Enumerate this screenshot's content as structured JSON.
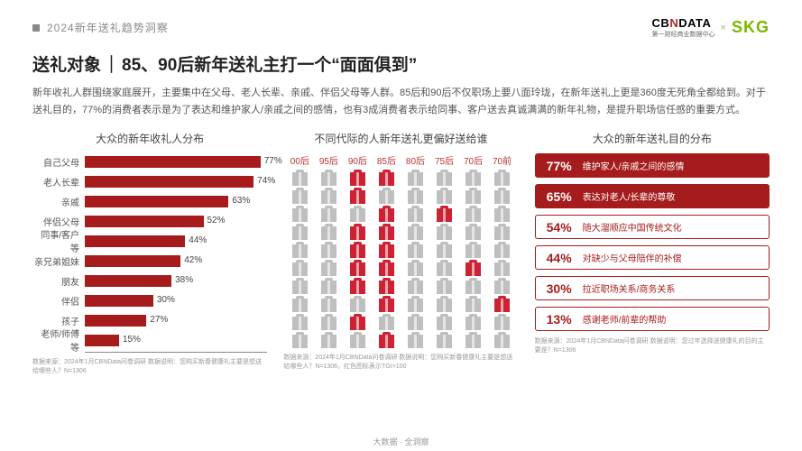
{
  "header": {
    "tag": "2024新年送礼趋势洞察",
    "brand_cbn_1": "CB",
    "brand_cbn_red": "N",
    "brand_cbn_2": "DATA",
    "brand_cbn_sub": "第一财经商业数据中心",
    "brand_x": "×",
    "brand_skg": "SKG"
  },
  "headline": {
    "left": "送礼对象",
    "sep": "｜",
    "right": "85、90后新年送礼主打一个“面面俱到”"
  },
  "body": "新年收礼人群围绕家庭展开，主要集中在父母、老人长辈、亲戚、伴侣父母等人群。85后和90后不仅职场上要八面玲珑，在新年送礼上更是360度无死角全都给到。对于送礼目的，77%的消费者表示是为了表达和维护家人/亲戚之间的感情，也有3成消费者表示给同事、客户送去真诚满满的新年礼物，是提升职场信任感的重要方式。",
  "left_chart": {
    "title": "大众的新年收礼人分布",
    "max": 80,
    "bar_color": "#a61c1c",
    "rows": [
      {
        "label": "自己父母",
        "pct": 77
      },
      {
        "label": "老人长辈",
        "pct": 74
      },
      {
        "label": "亲戚",
        "pct": 63
      },
      {
        "label": "伴侣父母",
        "pct": 52
      },
      {
        "label": "同事/客户等",
        "pct": 44
      },
      {
        "label": "亲兄弟姐妹",
        "pct": 42
      },
      {
        "label": "朋友",
        "pct": 38
      },
      {
        "label": "伴侣",
        "pct": 30
      },
      {
        "label": "孩子",
        "pct": 27
      },
      {
        "label": "老师/师傅等",
        "pct": 15
      }
    ],
    "source": "数据来源：2024年1月CBNData问卷调研 数据说明：您购买新春健康礼主要是想送给哪些人？N=1306"
  },
  "mid_chart": {
    "title": "不同代际的人新年送礼更偏好送给谁",
    "heads": [
      "00后",
      "95后",
      "90后",
      "85后",
      "80后",
      "75后",
      "70后",
      "70前"
    ],
    "cols": [
      [
        0,
        0,
        0,
        0,
        0,
        0,
        0,
        0,
        0,
        0
      ],
      [
        0,
        0,
        0,
        0,
        0,
        0,
        0,
        0,
        0,
        0
      ],
      [
        1,
        1,
        0,
        1,
        1,
        1,
        1,
        0,
        1,
        0
      ],
      [
        1,
        0,
        1,
        1,
        1,
        1,
        1,
        1,
        0,
        1
      ],
      [
        0,
        0,
        0,
        0,
        0,
        0,
        0,
        0,
        0,
        0
      ],
      [
        0,
        0,
        1,
        0,
        0,
        0,
        0,
        0,
        0,
        0
      ],
      [
        0,
        0,
        0,
        0,
        0,
        1,
        0,
        0,
        0,
        0
      ],
      [
        0,
        0,
        0,
        0,
        0,
        0,
        0,
        1,
        0,
        0
      ]
    ],
    "source": "数据来源：2024年1月CBNData问卷调研 数据说明：您购买新春健康礼主要是想送给哪些人？N=1306，红色图标表示TGI>100"
  },
  "right_chart": {
    "title": "大众的新年送礼目的分布",
    "rows": [
      {
        "pct": "77%",
        "txt": "维护家人/亲戚之间的感情",
        "filled": true
      },
      {
        "pct": "65%",
        "txt": "表达对老人/长辈的尊敬",
        "filled": true
      },
      {
        "pct": "54%",
        "txt": "随大溜顺应中国传统文化",
        "filled": false
      },
      {
        "pct": "44%",
        "txt": "对缺少与父母陪伴的补偿",
        "filled": false
      },
      {
        "pct": "30%",
        "txt": "拉近职场关系/商务关系",
        "filled": false
      },
      {
        "pct": "13%",
        "txt": "感谢老师/前辈的帮助",
        "filled": false
      }
    ],
    "source": "数据来源：2024年1月CBNData问卷调研 数据说明：您过年选择送健康礼的目的主要是？N=1306"
  },
  "footer": "大数据 · 全洞察"
}
